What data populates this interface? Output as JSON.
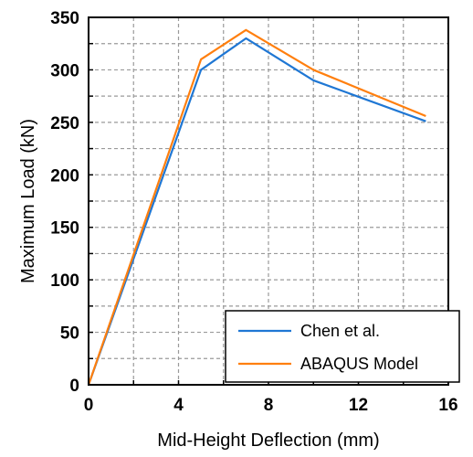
{
  "chart_data": {
    "type": "line",
    "xlabel": "Mid-Height Deflection (mm)",
    "ylabel": "Maximum Load (kN)",
    "xlim": [
      0,
      16
    ],
    "ylim": [
      0,
      350
    ],
    "x_ticks": [
      0,
      4,
      8,
      12,
      16
    ],
    "y_ticks": [
      0,
      50,
      100,
      150,
      200,
      250,
      300,
      350
    ],
    "x_minor_step": 2,
    "y_minor_step": 25,
    "grid": true,
    "grid_style": "dashed",
    "legend_position": "bottom-right",
    "series": [
      {
        "name": "Chen et al.",
        "color": "#1f77d4",
        "x": [
          0,
          5,
          7,
          10,
          15
        ],
        "y": [
          0,
          300,
          330,
          290,
          251
        ]
      },
      {
        "name": "ABAQUS Model",
        "color": "#ff7f0e",
        "x": [
          0,
          5,
          7,
          10,
          15
        ],
        "y": [
          0,
          310,
          338,
          300,
          256
        ]
      }
    ]
  }
}
